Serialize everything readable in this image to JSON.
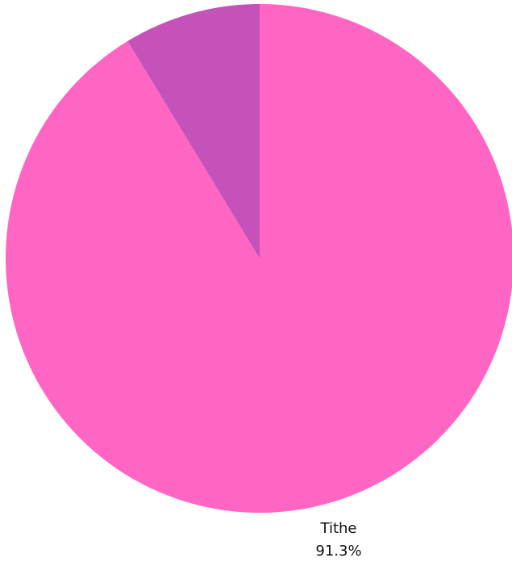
{
  "chart_data": {
    "type": "pie",
    "title": "",
    "slices": [
      {
        "label": "Tithe",
        "value": 91.3,
        "display": "91.3%",
        "color": "#ff66c4",
        "show_label": true
      },
      {
        "label": "",
        "value": 8.7,
        "display": "",
        "color": "#c452b8",
        "show_label": false
      }
    ],
    "legend": "none"
  }
}
